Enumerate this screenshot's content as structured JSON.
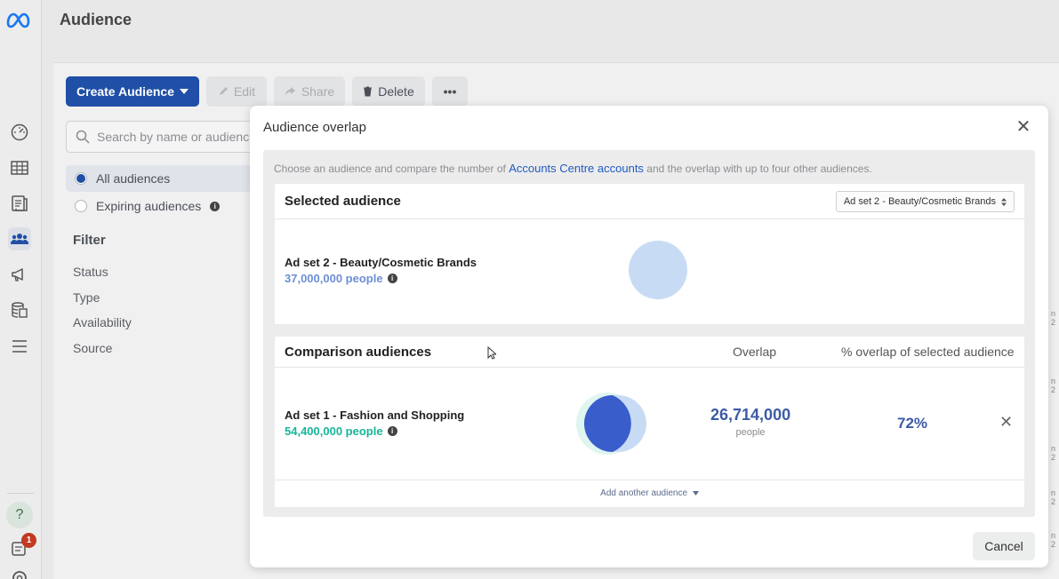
{
  "header": {
    "title": "Audience"
  },
  "toolbar": {
    "create_label": "Create Audience",
    "edit_label": "Edit",
    "share_label": "Share",
    "delete_label": "Delete",
    "more_label": "•••"
  },
  "sidebar": {
    "search_placeholder": "Search by name or audience",
    "all_audiences": "All audiences",
    "expiring_audiences": "Expiring audiences",
    "filter_title": "Filter",
    "filters": [
      "Status",
      "Type",
      "Availability",
      "Source"
    ]
  },
  "rail": {
    "notification_count": "1"
  },
  "modal": {
    "title": "Audience overlap",
    "description_pre": "Choose an audience and compare the number of",
    "description_link": "Accounts Centre accounts",
    "description_post": "and the overlap with up to four other audiences.",
    "selected": {
      "heading": "Selected audience",
      "dropdown_value": "Ad set 2 - Beauty/Cosmetic Brands",
      "name": "Ad set 2 - Beauty/Cosmetic Brands",
      "size": "37,000,000 people"
    },
    "comparison": {
      "heading": "Comparison audiences",
      "overlap_col": "Overlap",
      "pct_col": "% overlap of selected audience",
      "rows": [
        {
          "name": "Ad set 1 - Fashion and Shopping",
          "size": "54,400,000 people",
          "overlap": "26,714,000",
          "overlap_unit": "people",
          "pct": "72%"
        }
      ],
      "add_label": "Add another audience"
    },
    "cancel_label": "Cancel"
  },
  "colors": {
    "primary": "#1f4fa6",
    "selected_size": "#6c8fd6",
    "comparison_size": "#17b59a",
    "overlap": "#3c5aa6"
  }
}
